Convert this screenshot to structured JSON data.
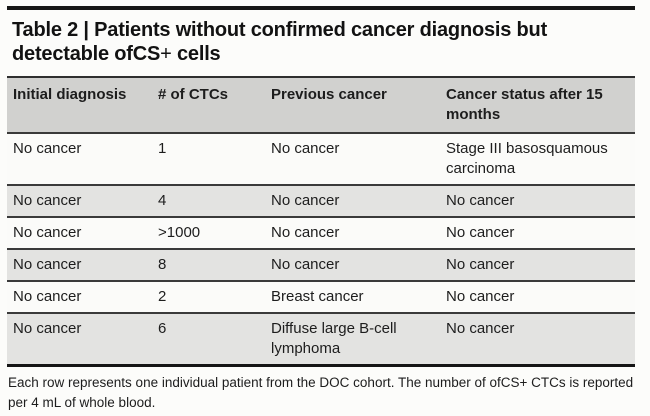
{
  "title": {
    "line1": "Table 2 | Patients without confirmed cancer diagnosis but",
    "line2_prefix": "detectable ofCS",
    "line2_plus": "+",
    "line2_suffix": " cells"
  },
  "table": {
    "columns": [
      {
        "label": "Initial diagnosis"
      },
      {
        "label": "# of CTCs"
      },
      {
        "label": "Previous cancer"
      },
      {
        "label": "Cancer status after 15 months"
      }
    ],
    "rows": [
      {
        "initial": "No cancer",
        "ctcs": "1",
        "previous": "No cancer",
        "status": "Stage III basosquamous carcinoma"
      },
      {
        "initial": "No cancer",
        "ctcs": "4",
        "previous": "No cancer",
        "status": "No cancer"
      },
      {
        "initial": "No cancer",
        "ctcs": ">1000",
        "previous": "No cancer",
        "status": "No cancer"
      },
      {
        "initial": "No cancer",
        "ctcs": "8",
        "previous": "No cancer",
        "status": "No cancer"
      },
      {
        "initial": "No cancer",
        "ctcs": "2",
        "previous": "Breast cancer",
        "status": "No cancer"
      },
      {
        "initial": "No cancer",
        "ctcs": "6",
        "previous": "Diffuse large B-cell lymphoma",
        "status": "No cancer"
      }
    ]
  },
  "footnote": "Each row represents one individual patient from the DOC cohort. The number of ofCS+ CTCs is reported per 4 mL of whole blood.",
  "colors": {
    "top_rule": "#161616",
    "header_bg": "#d1d1cf",
    "row_bg": "#fbfbf9",
    "row_alt_bg": "#e3e3e1",
    "row_rule": "#3a3a3a",
    "bottom_rule": "#151515",
    "text": "#1d1d1d"
  }
}
